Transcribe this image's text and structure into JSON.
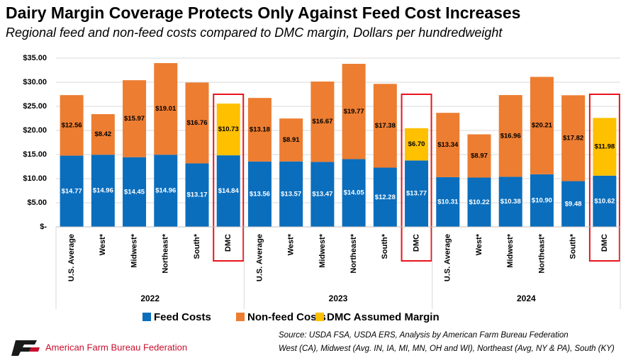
{
  "chart_data": {
    "type": "stacked_bar",
    "title": "Dairy Margin Coverage Protects Only Against Feed Cost Increases",
    "subtitle": "Regional feed and non-feed costs compared to DMC margin, Dollars per hundredweight",
    "groups": [
      {
        "name": "2022",
        "categories": [
          "U.S. Average",
          "West*",
          "Midwest*",
          "Northeast*",
          "South*",
          "DMC"
        ]
      },
      {
        "name": "2023",
        "categories": [
          "U.S. Average",
          "West*",
          "Midwest*",
          "Northeast*",
          "South*",
          "DMC"
        ]
      },
      {
        "name": "2024",
        "categories": [
          "U.S. Average",
          "West*",
          "Midwest*",
          "Northeast*",
          "South*",
          "DMC"
        ]
      }
    ],
    "series": [
      {
        "name": "Feed Costs",
        "color": "#0a6ebd",
        "label_color": "#ffffff",
        "values": [
          14.77,
          14.96,
          14.45,
          14.96,
          13.17,
          14.84,
          13.56,
          13.57,
          13.47,
          14.05,
          12.28,
          13.77,
          10.31,
          10.22,
          10.38,
          10.9,
          9.48,
          10.62
        ],
        "value_labels": [
          "$14.77",
          "$14.96",
          "$14.45",
          "$14.96",
          "$13.17",
          "$14.84",
          "$13.56",
          "$13.57",
          "$13.47",
          "$14.05",
          "$12.28",
          "$13.77",
          "$10.31",
          "$10.22",
          "$10.38",
          "$10.90",
          "$9.48",
          "$10.62"
        ]
      },
      {
        "name": "Non-feed Costs",
        "color": "#ed7d31",
        "label_color": "#000000",
        "values": [
          12.56,
          8.42,
          15.97,
          19.01,
          16.76,
          null,
          13.18,
          8.91,
          16.67,
          19.77,
          17.38,
          null,
          13.34,
          8.97,
          16.96,
          20.21,
          17.82,
          null
        ],
        "value_labels": [
          "$12.56",
          "$8.42",
          "$15.97",
          "$19.01",
          "$16.76",
          null,
          "$13.18",
          "$8.91",
          "$16.67",
          "$19.77",
          "$17.38",
          null,
          "$13.34",
          "$8.97",
          "$16.96",
          "$20.21",
          "$17.82",
          null
        ]
      },
      {
        "name": "DMC Assumed Margin",
        "color": "#ffc000",
        "label_color": "#000000",
        "values": [
          null,
          null,
          null,
          null,
          null,
          10.73,
          null,
          null,
          null,
          null,
          null,
          6.7,
          null,
          null,
          null,
          null,
          null,
          11.98
        ],
        "value_labels": [
          null,
          null,
          null,
          null,
          null,
          "$10.73",
          null,
          null,
          null,
          null,
          null,
          "$6.70",
          null,
          null,
          null,
          null,
          null,
          "$11.98"
        ]
      }
    ],
    "ylim": [
      0,
      35
    ],
    "yticks": [
      {
        "value": 0,
        "label": "$-"
      },
      {
        "value": 5,
        "label": "$5.00"
      },
      {
        "value": 10,
        "label": "$10.00"
      },
      {
        "value": 15,
        "label": "$15.00"
      },
      {
        "value": 20,
        "label": "$20.00"
      },
      {
        "value": 25,
        "label": "$25.00"
      },
      {
        "value": 30,
        "label": "$30.00"
      },
      {
        "value": 35,
        "label": "$35.00"
      }
    ],
    "grid": true,
    "highlight_color": "#e8141c"
  },
  "footer": {
    "source": [
      "Source: USDA FSA, USDA ERS, Analysis by American Farm Bureau Federation",
      "West (CA), Midwest (Avg. IN, IA, MI, MN, OH and WI), Northeast (Avg, NY & PA), South (KY)"
    ],
    "logo": "American Farm Bureau Federation"
  }
}
